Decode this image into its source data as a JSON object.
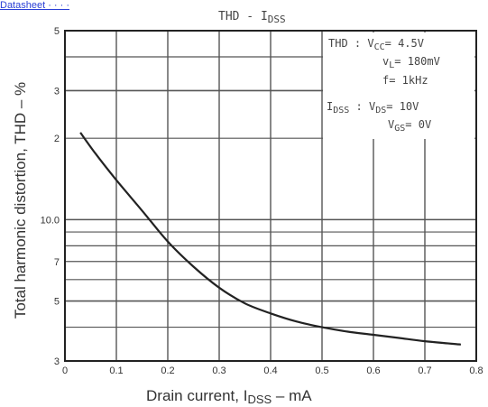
{
  "top_link": "Datasheet · · · ·",
  "chart_data": {
    "type": "line",
    "title": "THD - I",
    "title_sub": "DSS",
    "xlabel": "Drain current, I",
    "xlabel_sub": "DSS",
    "xlabel_suffix": " – mA",
    "ylabel": "Total harmonic distortion, THD – %",
    "x_ticks": [
      "0",
      "0.1",
      "0.2",
      "0.3",
      "0.4",
      "0.5",
      "0.6",
      "0.7",
      "0.8"
    ],
    "y_tick_labels": [
      {
        "v": 3,
        "label": "3"
      },
      {
        "v": 5,
        "label": "5"
      },
      {
        "v": 7,
        "label": "7"
      },
      {
        "v": 10,
        "label": "10.0"
      },
      {
        "v": 20,
        "label": "2"
      },
      {
        "v": 30,
        "label": "3"
      },
      {
        "v": 50,
        "label": "5"
      }
    ],
    "y_gridlines": [
      3,
      4,
      5,
      6,
      7,
      8,
      9,
      10,
      20,
      30,
      40,
      50
    ],
    "xlim": [
      0,
      0.8
    ],
    "ylim": [
      3,
      50
    ],
    "y_scale": "log",
    "series": [
      {
        "x": [
          0.03,
          0.06,
          0.1,
          0.15,
          0.2,
          0.25,
          0.3,
          0.35,
          0.4,
          0.45,
          0.5,
          0.55,
          0.6,
          0.65,
          0.7,
          0.77
        ],
        "y": [
          21,
          17.5,
          14,
          10.8,
          8.3,
          6.7,
          5.6,
          4.9,
          4.5,
          4.2,
          4.0,
          3.85,
          3.75,
          3.65,
          3.55,
          3.45
        ]
      }
    ],
    "annotation": {
      "thd_label": "THD : V",
      "thd_sub": "CC",
      "thd_val": "= 4.5V",
      "vl_label": "v",
      "vl_sub": "L",
      "vl_val": "= 180mV",
      "f_label": "f",
      "f_val": "= 1kHz",
      "idss_label": "I",
      "idss_sub": "DSS",
      "idss_colon": " : V",
      "vds_sub": "DS",
      "vds_val": "= 10V",
      "vgs_label": "V",
      "vgs_sub": "GS",
      "vgs_val": "= 0V"
    },
    "grid": true,
    "legend": "none",
    "line_color": "#222222",
    "grid_color": "#555555"
  }
}
